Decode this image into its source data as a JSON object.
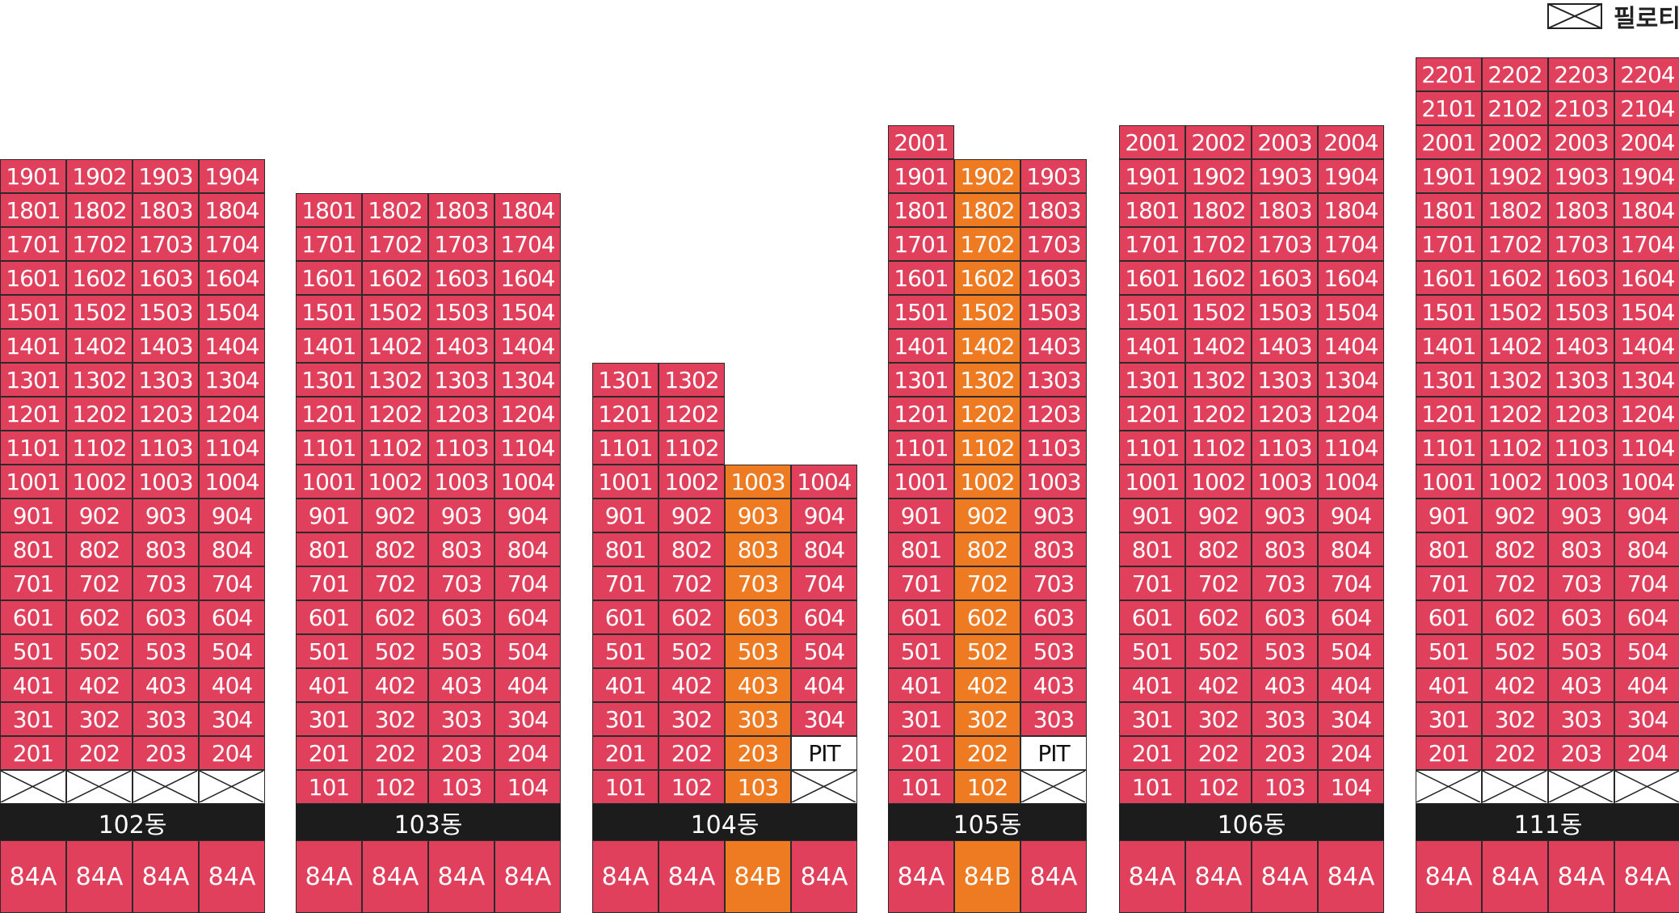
{
  "legend": {
    "label": "필로티",
    "icon": "piloti-icon"
  },
  "colors": {
    "standard": "#e0405c",
    "highlight": "#ee7a22",
    "label_bg": "#1c1c1c",
    "pit": "#ffffff"
  },
  "buildings": [
    {
      "name": "102동",
      "cols": 4,
      "floors": 19,
      "highlight_col": null,
      "rooftop": [],
      "types": [
        "84A",
        "84A",
        "84A",
        "84A"
      ],
      "first_floor": [
        "X",
        "X",
        "X",
        "X"
      ],
      "second_floor": [
        "201",
        "202",
        "203",
        "204"
      ]
    },
    {
      "name": "103동",
      "cols": 4,
      "floors": 18,
      "highlight_col": null,
      "rooftop": [],
      "types": [
        "84A",
        "84A",
        "84A",
        "84A"
      ],
      "first_floor": [
        "101",
        "102",
        "103",
        "104"
      ],
      "second_floor": [
        "201",
        "202",
        "203",
        "204"
      ]
    },
    {
      "name": "104동",
      "cols": 4,
      "floors": 13,
      "highlight_col": 2,
      "rooftop": [],
      "col_max_floor": [
        13,
        13,
        10,
        10
      ],
      "types": [
        "84A",
        "84A",
        "84B",
        "84A"
      ],
      "first_floor": [
        "101",
        "102",
        "103",
        "X"
      ],
      "second_floor": [
        "201",
        "202",
        "203",
        "PIT"
      ]
    },
    {
      "name": "105동",
      "cols": 3,
      "floors": 19,
      "highlight_col": 1,
      "rooftop": [
        "2001"
      ],
      "types": [
        "84A",
        "84B",
        "84A"
      ],
      "first_floor": [
        "101",
        "102",
        "X"
      ],
      "second_floor": [
        "201",
        "202",
        "PIT"
      ]
    },
    {
      "name": "106동",
      "cols": 4,
      "floors": 20,
      "highlight_col": null,
      "rooftop": [],
      "types": [
        "84A",
        "84A",
        "84A",
        "84A"
      ],
      "first_floor": [
        "101",
        "102",
        "103",
        "104"
      ],
      "second_floor": [
        "201",
        "202",
        "203",
        "204"
      ]
    },
    {
      "name": "111동",
      "cols": 4,
      "floors": 22,
      "highlight_col": null,
      "rooftop": [],
      "types": [
        "84A",
        "84A",
        "84A",
        "84A"
      ],
      "first_floor": [
        "X",
        "X",
        "X",
        "X"
      ],
      "second_floor": [
        "201",
        "202",
        "203",
        "204"
      ]
    }
  ]
}
